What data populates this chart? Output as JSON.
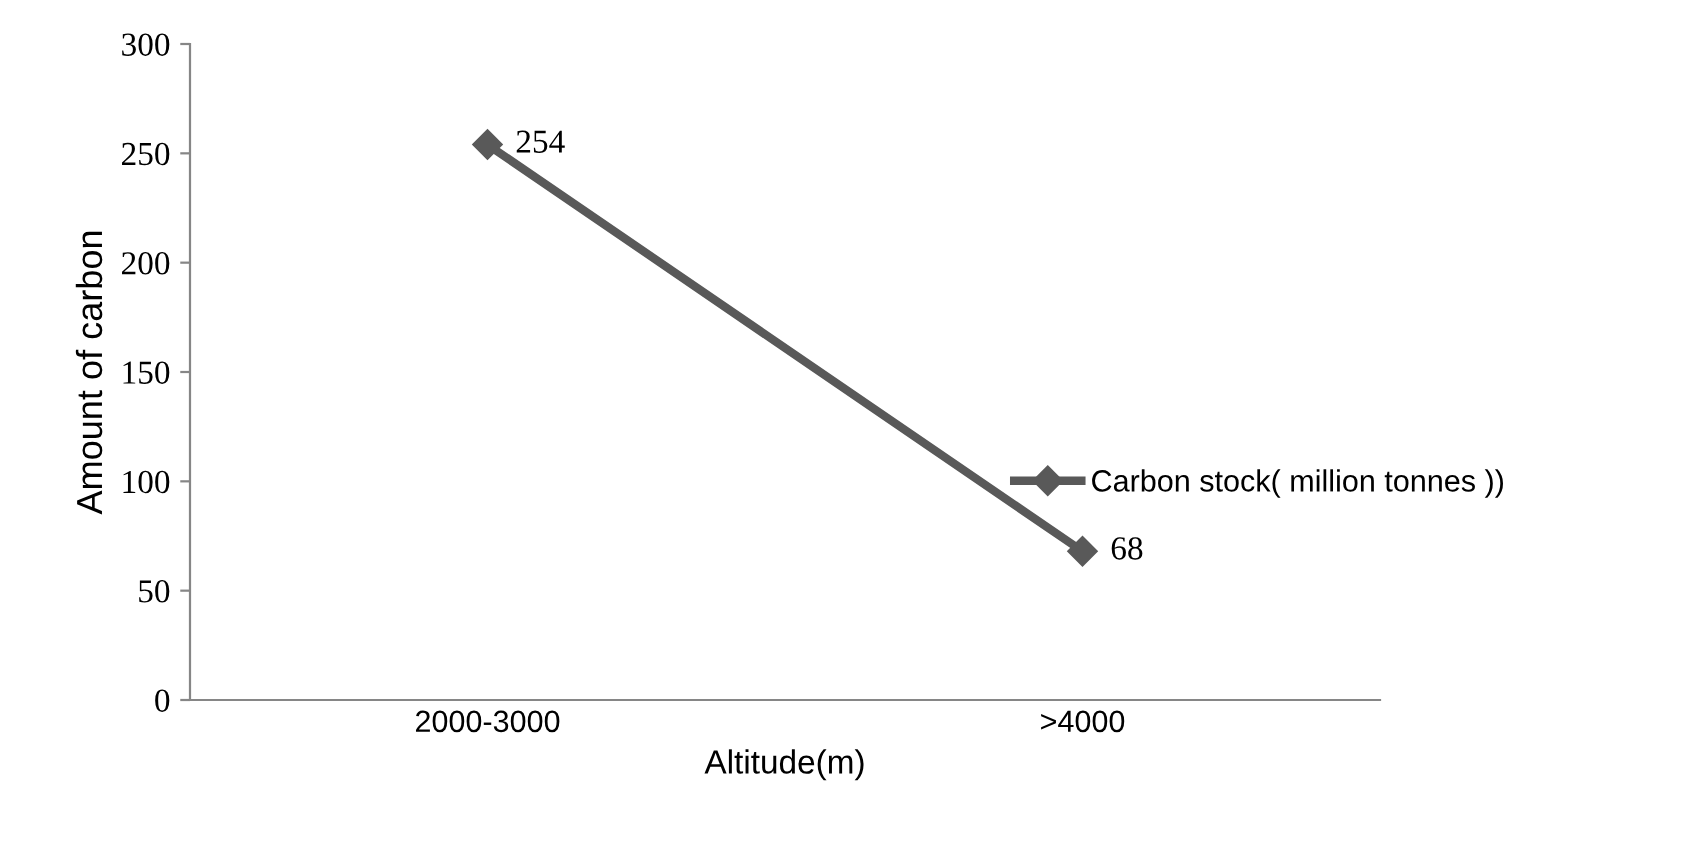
{
  "chart_data": {
    "type": "line",
    "xlabel": "Altitude(m)",
    "ylabel": "Amount of carbon",
    "categories": [
      "2000-3000",
      ">4000"
    ],
    "series": [
      {
        "name": "Carbon stock( million tonnes ))",
        "color": "#595959",
        "values": [
          254,
          68
        ]
      }
    ],
    "ylim": [
      0,
      300
    ],
    "yticks": [
      0,
      50,
      100,
      150,
      200,
      250,
      300
    ],
    "data_labels": true,
    "marker": "diamond",
    "line_style": "solid",
    "legend": "right",
    "grid": false
  }
}
